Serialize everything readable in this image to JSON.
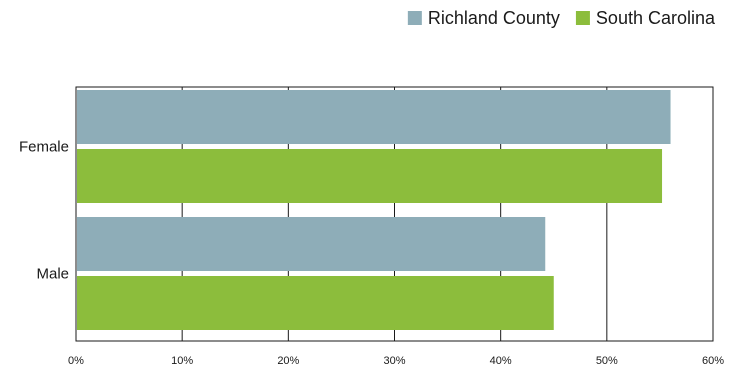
{
  "chart_data": {
    "type": "bar",
    "orientation": "horizontal",
    "categories": [
      "Female",
      "Male"
    ],
    "series": [
      {
        "name": "Richland County",
        "color": "#8eadb8",
        "values": [
          56,
          44.2
        ]
      },
      {
        "name": "South Carolina",
        "color": "#8cbd3c",
        "values": [
          55.2,
          45
        ]
      }
    ],
    "xlim": [
      0,
      60
    ],
    "xticks": [
      "0%",
      "10%",
      "20%",
      "30%",
      "40%",
      "50%",
      "60%"
    ],
    "grid": true,
    "legend_position": "top-right"
  }
}
